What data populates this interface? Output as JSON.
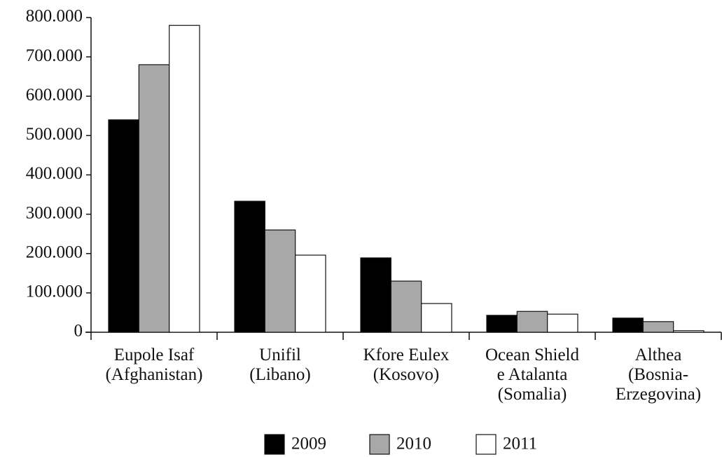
{
  "chart_data": {
    "type": "bar",
    "categories": [
      "Eupole Isaf\n(Afghanistan)",
      "Unifil\n(Libano)",
      "Kfore Eulex\n(Kosovo)",
      "Ocean Shield\ne Atalanta\n(Somalia)",
      "Althea\n(Bosnia-\nErzegovina)"
    ],
    "series": [
      {
        "name": "2009",
        "color": "#000000",
        "values": [
          540000,
          333000,
          189000,
          43000,
          36000
        ]
      },
      {
        "name": "2010",
        "color": "#a8a8a8",
        "values": [
          680000,
          260000,
          130000,
          53000,
          27000
        ]
      },
      {
        "name": "2011",
        "color": "#ffffff",
        "values": [
          780000,
          196000,
          73000,
          46000,
          4000
        ]
      }
    ],
    "ylim": [
      0,
      800000
    ],
    "yticks": [
      0,
      {
        "value": 100000,
        "label": "100.000"
      },
      {
        "value": 200000,
        "label": "200.000"
      },
      {
        "value": 300000,
        "label": "300.000"
      },
      {
        "value": 400000,
        "label": "400.000"
      },
      {
        "value": 500000,
        "label": "500.000"
      },
      {
        "value": 600000,
        "label": "600.000"
      },
      {
        "value": 700000,
        "label": "700.000"
      },
      {
        "value": 800000,
        "label": "800.000"
      }
    ],
    "grid": false,
    "legend": "bottom"
  }
}
